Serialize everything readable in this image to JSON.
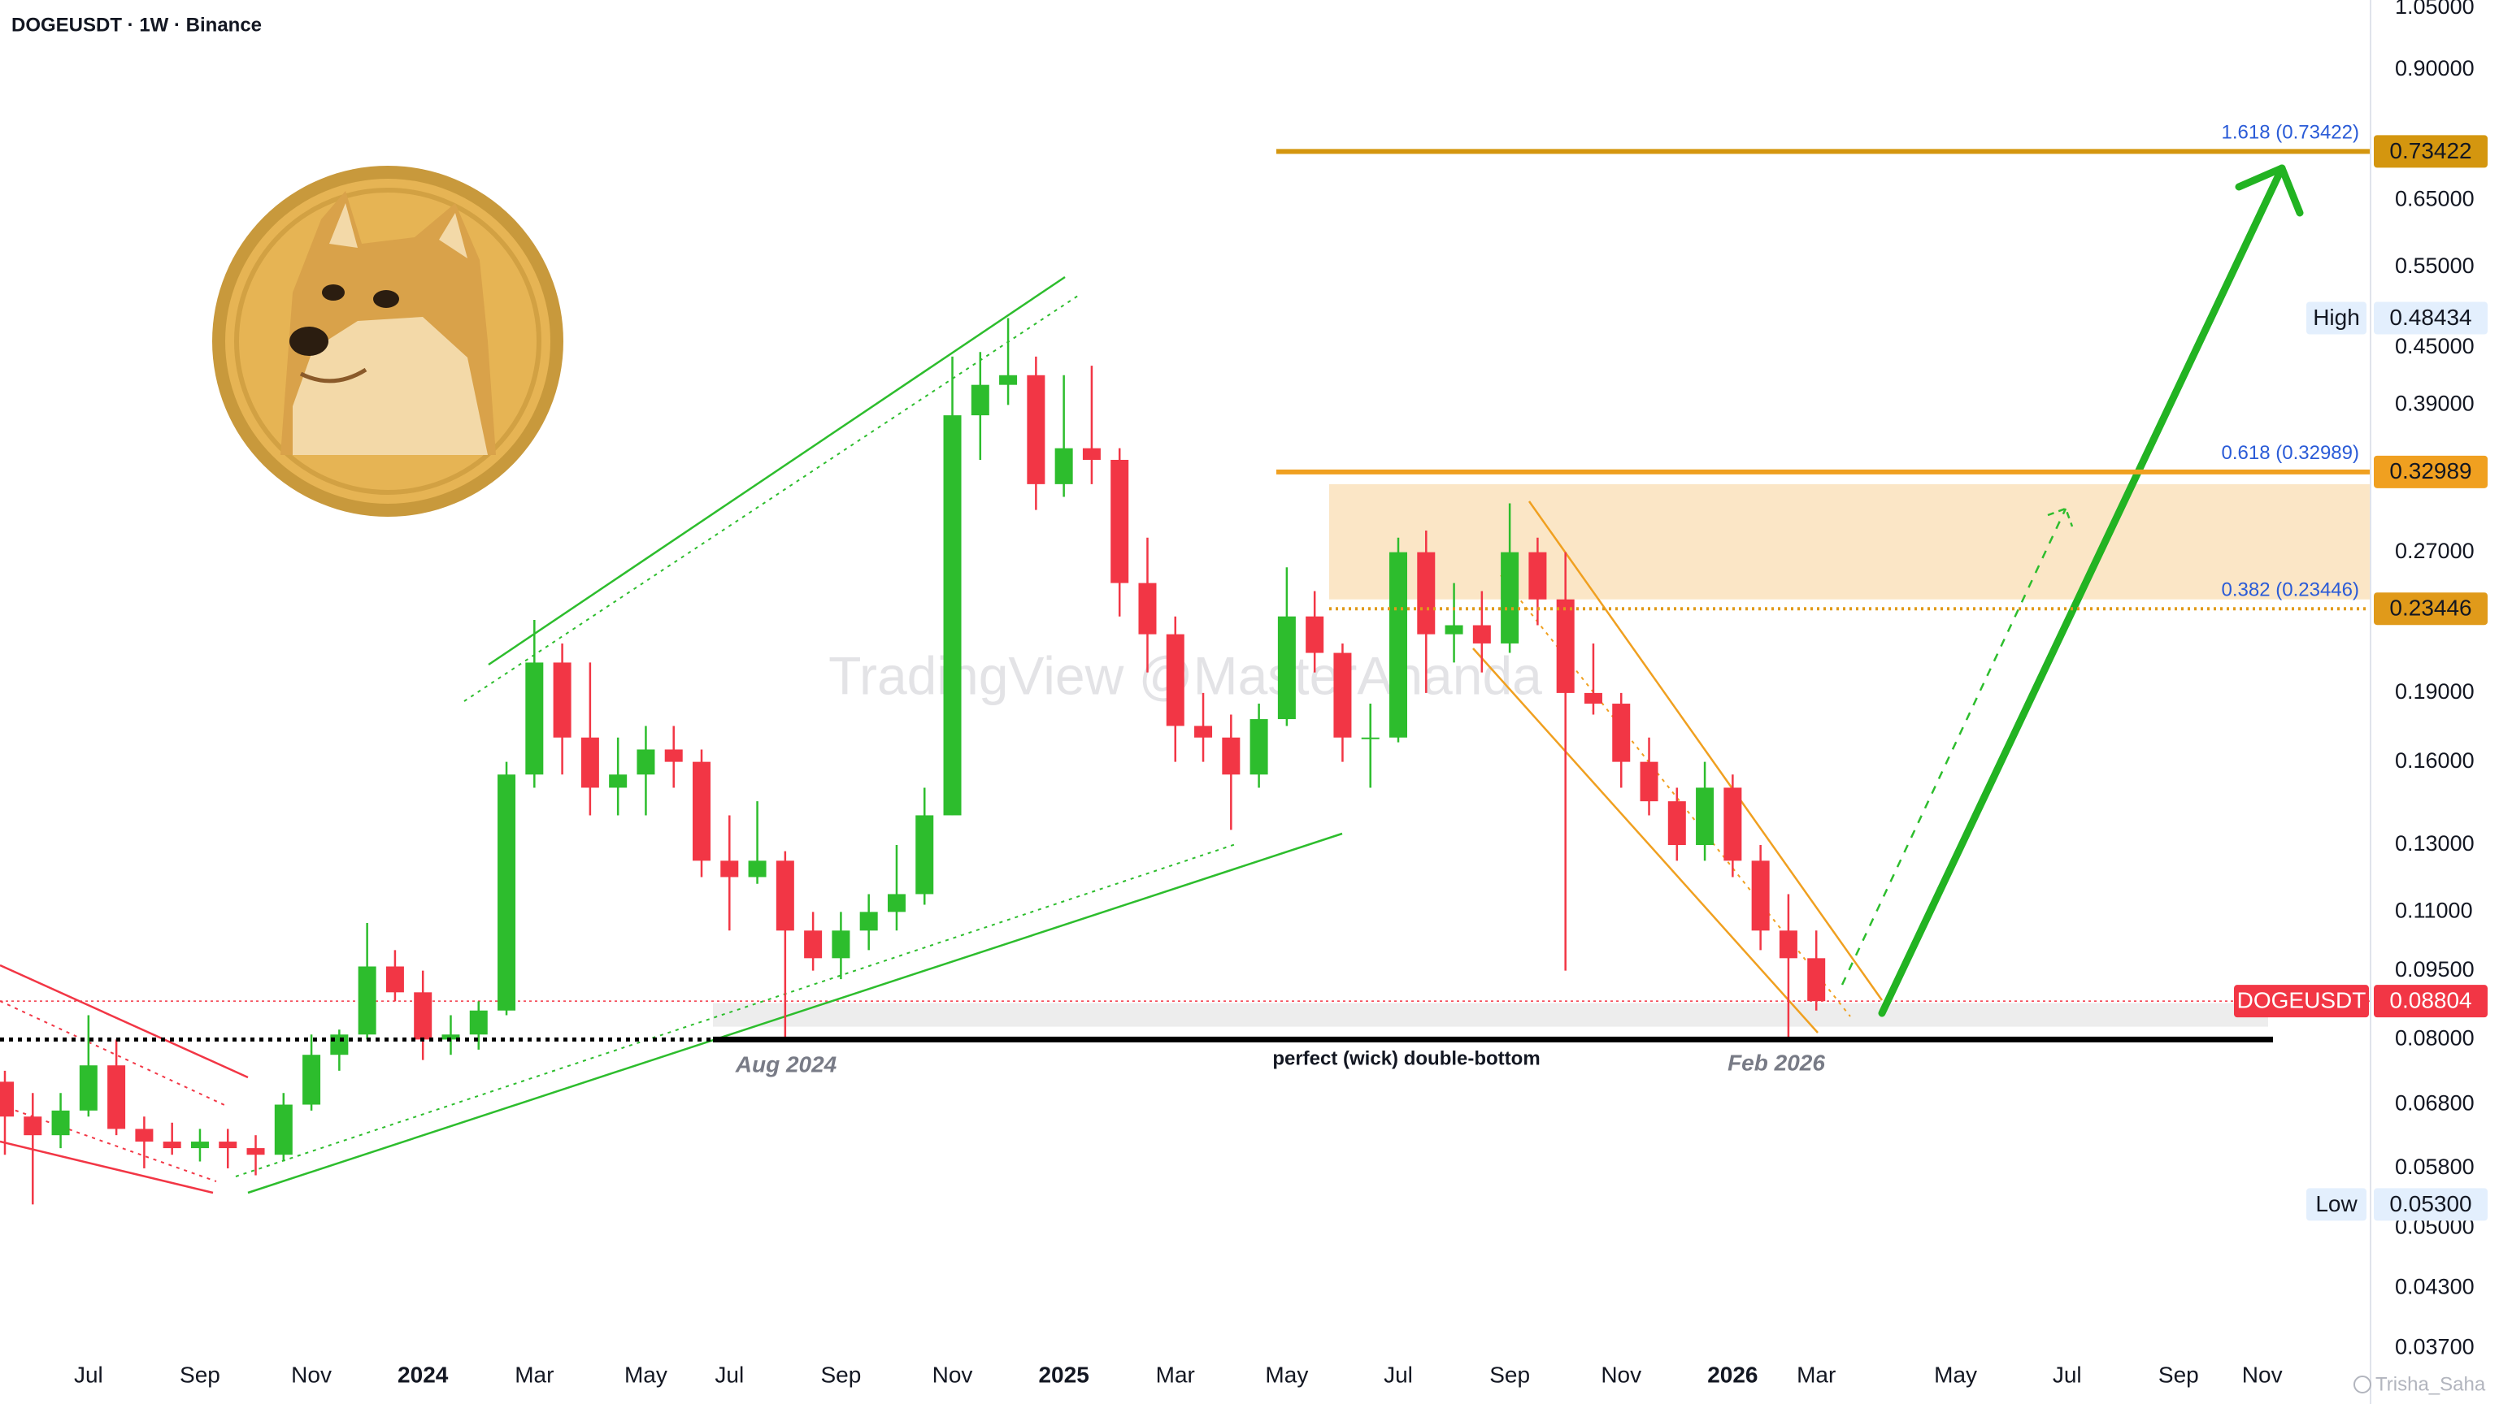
{
  "chart_data": {
    "type": "candlestick",
    "title": "DOGEUSDT · 1W · Binance",
    "watermark": "TradingView @MasterAnanda",
    "credit": "Trisha_Saha",
    "annotations": [
      "Aug 2024",
      "perfect (wick) double-bottom",
      "Feb 2026"
    ],
    "categories": [
      null,
      null,
      null,
      "Jul",
      null,
      null,
      null,
      "Sep",
      null,
      null,
      null,
      "Nov",
      null,
      null,
      null,
      "2024",
      null,
      null,
      null,
      "Mar",
      null,
      null,
      null,
      "May",
      null,
      null,
      "Jul",
      null,
      null,
      null,
      "Sep",
      null,
      null,
      null,
      "Nov",
      null,
      null,
      null,
      "2025",
      null,
      null,
      null,
      "Mar",
      null,
      null,
      null,
      "May",
      null,
      null,
      null,
      "Jul",
      null,
      null,
      null,
      "Sep",
      null,
      null,
      null,
      "Nov",
      null,
      null,
      null,
      "2026",
      null,
      null,
      "Mar",
      null,
      null,
      null,
      null,
      "May",
      null,
      null,
      null,
      "Jul",
      null,
      null,
      null,
      "Sep",
      null,
      null,
      "Nov"
    ],
    "year_labels": [
      "2024",
      "2025",
      "2026"
    ],
    "series": [
      {
        "name": "DOGEUSDT",
        "up_color": "#2dbd2d",
        "down_color": "#f23645",
        "open": [
          0.072,
          0.066,
          0.063,
          0.067,
          0.075,
          0.064,
          0.062,
          0.061,
          0.062,
          0.061,
          0.06,
          0.068,
          0.077,
          0.081,
          0.096,
          0.09,
          0.08,
          0.081,
          0.086,
          0.155,
          0.205,
          0.17,
          0.15,
          0.155,
          0.165,
          0.16,
          0.125,
          0.12,
          0.125,
          0.105,
          0.098,
          0.105,
          0.11,
          0.115,
          0.14,
          0.38,
          0.41,
          0.42,
          0.32,
          0.35,
          0.34,
          0.25,
          0.22,
          0.175,
          0.17,
          0.155,
          0.178,
          0.23,
          0.21,
          0.17,
          0.17,
          0.27,
          0.22,
          0.225,
          0.215,
          0.27,
          0.24,
          0.19,
          0.185,
          0.16,
          0.145,
          0.13,
          0.15,
          0.125,
          0.105,
          0.098,
          null,
          null,
          null,
          null,
          null,
          null,
          null,
          null,
          null,
          null,
          null,
          null,
          null,
          null,
          null,
          null
        ],
        "high": [
          0.074,
          0.07,
          0.07,
          0.085,
          0.08,
          0.066,
          0.065,
          0.064,
          0.064,
          0.063,
          0.07,
          0.081,
          0.082,
          0.107,
          0.1,
          0.095,
          0.085,
          0.088,
          0.16,
          0.228,
          0.215,
          0.205,
          0.17,
          0.175,
          0.175,
          0.165,
          0.14,
          0.145,
          0.128,
          0.11,
          0.11,
          0.115,
          0.13,
          0.15,
          0.44,
          0.445,
          0.48434,
          0.44,
          0.42,
          0.43,
          0.35,
          0.28,
          0.23,
          0.19,
          0.18,
          0.185,
          0.26,
          0.245,
          0.215,
          0.185,
          0.28,
          0.285,
          0.25,
          0.245,
          0.305,
          0.28,
          0.27,
          0.215,
          0.19,
          0.17,
          0.15,
          0.16,
          0.155,
          0.13,
          0.115,
          0.105,
          null,
          null,
          null,
          null,
          null,
          null,
          null,
          null,
          null,
          null,
          null,
          null,
          null,
          null,
          null,
          null
        ],
        "low": [
          0.06,
          0.053,
          0.061,
          0.066,
          0.063,
          0.058,
          0.06,
          0.059,
          0.058,
          0.057,
          0.059,
          0.067,
          0.074,
          0.08,
          0.088,
          0.076,
          0.077,
          0.078,
          0.085,
          0.15,
          0.155,
          0.14,
          0.14,
          0.14,
          0.15,
          0.12,
          0.105,
          0.118,
          0.08,
          0.095,
          0.093,
          0.1,
          0.105,
          0.112,
          0.14,
          0.34,
          0.39,
          0.3,
          0.31,
          0.32,
          0.23,
          0.2,
          0.16,
          0.16,
          0.135,
          0.15,
          0.175,
          0.2,
          0.16,
          0.15,
          0.168,
          0.19,
          0.205,
          0.2,
          0.21,
          0.225,
          0.095,
          0.18,
          0.15,
          0.14,
          0.125,
          0.125,
          0.12,
          0.1,
          0.08,
          0.086,
          null,
          null,
          null,
          null,
          null,
          null,
          null,
          null,
          null,
          null,
          null,
          null,
          null,
          null,
          null,
          null
        ],
        "close": [
          0.066,
          0.063,
          0.067,
          0.075,
          0.064,
          0.062,
          0.061,
          0.062,
          0.061,
          0.06,
          0.068,
          0.077,
          0.081,
          0.096,
          0.09,
          0.08,
          0.081,
          0.086,
          0.155,
          0.205,
          0.17,
          0.15,
          0.155,
          0.165,
          0.16,
          0.125,
          0.12,
          0.125,
          0.105,
          0.098,
          0.105,
          0.11,
          0.115,
          0.14,
          0.38,
          0.41,
          0.42,
          0.32,
          0.35,
          0.34,
          0.25,
          0.22,
          0.175,
          0.17,
          0.155,
          0.178,
          0.23,
          0.21,
          0.17,
          0.17,
          0.27,
          0.22,
          0.225,
          0.215,
          0.27,
          0.24,
          0.19,
          0.185,
          0.16,
          0.145,
          0.13,
          0.15,
          0.125,
          0.105,
          0.098,
          0.08804,
          null,
          null,
          null,
          null,
          null,
          null,
          null,
          null,
          null,
          null,
          null,
          null,
          null,
          null,
          null,
          null
        ]
      }
    ],
    "log": true,
    "ylim": [
      0.0355,
      1.0715
    ],
    "yticks": [
      {
        "value": 1.05,
        "label": "1.05000"
      },
      {
        "value": 0.9,
        "label": "0.90000"
      },
      {
        "value": 0.65,
        "label": "0.65000"
      },
      {
        "value": 0.55,
        "label": "0.55000"
      },
      {
        "value": 0.45,
        "label": "0.45000"
      },
      {
        "value": 0.39,
        "label": "0.39000"
      },
      {
        "value": 0.27,
        "label": "0.27000"
      },
      {
        "value": 0.19,
        "label": "0.19000"
      },
      {
        "value": 0.16,
        "label": "0.16000"
      },
      {
        "value": 0.13,
        "label": "0.13000"
      },
      {
        "value": 0.11,
        "label": "0.11000"
      },
      {
        "value": 0.095,
        "label": "0.09500"
      },
      {
        "value": 0.08,
        "label": "0.08000"
      },
      {
        "value": 0.068,
        "label": "0.06800"
      },
      {
        "value": 0.058,
        "label": "0.05800"
      },
      {
        "value": 0.05,
        "label": "0.05000"
      },
      {
        "value": 0.043,
        "label": "0.04300"
      },
      {
        "value": 0.037,
        "label": "0.03700"
      }
    ],
    "grid": false,
    "levels": [
      {
        "label": "1.618 (0.73422)",
        "value": 0.73422,
        "color": "#d4960f",
        "style": "solid"
      },
      {
        "label": "0.618 (0.32989)",
        "value": 0.32989,
        "color": "#f0a020",
        "style": "solid"
      },
      {
        "label": "0.382 (0.23446)",
        "value": 0.23446,
        "color": "#e09a1a",
        "style": "dotted"
      }
    ],
    "zones": [
      {
        "from": 0.24,
        "to": 0.32,
        "color": "#fbe6c6"
      },
      {
        "from": 0.0826,
        "to": 0.0876,
        "color": "#ededed"
      }
    ],
    "support_level": 0.08,
    "markers": [
      {
        "name": "High",
        "value": 0.48434
      },
      {
        "name": "Low",
        "value": {
          "value": 0.053,
          "label": "0.05300"
        }
      }
    ]
  }
}
